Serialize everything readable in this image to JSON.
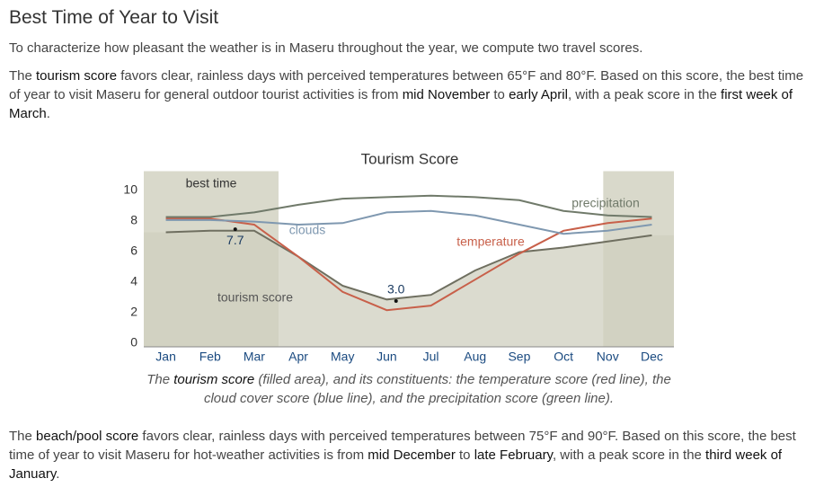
{
  "header": {
    "title": "Best Time of Year to Visit"
  },
  "intro": [
    [
      {
        "text": "To characterize how pleasant the weather is in Maseru throughout the year, we compute two travel scores."
      }
    ],
    [
      {
        "text": "The "
      },
      {
        "text": "tourism score",
        "strong": true
      },
      {
        "text": " favors clear, rainless days with perceived temperatures between 65°F and 80°F. Based on this score, the best time of year to visit Maseru for general outdoor tourist activities is from "
      },
      {
        "text": "mid November",
        "strong": true
      },
      {
        "text": " to "
      },
      {
        "text": "early April",
        "strong": true
      },
      {
        "text": ", with a peak score in the "
      },
      {
        "text": "first week of March",
        "strong": true
      },
      {
        "text": "."
      }
    ]
  ],
  "chart_data": {
    "type": "line",
    "title": "Tourism Score",
    "categories": [
      "Jan",
      "Feb",
      "Mar",
      "Apr",
      "May",
      "Jun",
      "Jul",
      "Aug",
      "Sep",
      "Oct",
      "Nov",
      "Dec"
    ],
    "ylim": [
      0,
      11.5
    ],
    "yticks": [
      0,
      2,
      4,
      6,
      8,
      10
    ],
    "series": [
      {
        "name": "tourism score",
        "color": "#6f6f60",
        "fill": "#cfcfbf",
        "values": [
          7.5,
          7.6,
          7.6,
          5.9,
          4.0,
          3.1,
          3.4,
          5.0,
          6.2,
          6.5,
          6.9,
          7.3
        ]
      },
      {
        "name": "temperature",
        "color": "#c8604a",
        "values": [
          8.4,
          8.4,
          8.0,
          5.9,
          3.6,
          2.4,
          2.7,
          4.4,
          6.1,
          7.6,
          8.1,
          8.4
        ]
      },
      {
        "name": "clouds",
        "color": "#7f98b0",
        "values": [
          8.3,
          8.3,
          8.2,
          8.0,
          8.1,
          8.8,
          8.9,
          8.6,
          8.0,
          7.4,
          7.6,
          8.0
        ]
      },
      {
        "name": "precipitation",
        "color": "#707a6a",
        "values": [
          8.5,
          8.5,
          8.8,
          9.3,
          9.7,
          9.8,
          9.9,
          9.8,
          9.6,
          8.9,
          8.6,
          8.5
        ]
      }
    ],
    "best_time": {
      "label": "best time",
      "color": "#d9d9cb",
      "ranges": [
        [
          0,
          3.05
        ],
        [
          10.4,
          12
        ]
      ]
    },
    "annotations": [
      {
        "x": 1.57,
        "value": 7.7,
        "label": "7.7"
      },
      {
        "x": 5.21,
        "value": 3.0,
        "label": "3.0"
      }
    ],
    "caption": [
      [
        {
          "text": "The "
        },
        {
          "text": "tourism score",
          "strong": true
        },
        {
          "text": " (filled area), and its constituents: the temperature score (red line), the"
        }
      ],
      [
        {
          "text": "cloud cover score (blue line), and the precipitation score (green line)."
        }
      ]
    ]
  },
  "outro": [
    [
      {
        "text": "The "
      },
      {
        "text": "beach/pool score",
        "strong": true
      },
      {
        "text": " favors clear, rainless days with perceived temperatures between 75°F and 90°F. Based on this score, the best time of year to visit Maseru for hot-weather activities is from "
      },
      {
        "text": "mid December",
        "strong": true
      },
      {
        "text": " to "
      },
      {
        "text": "late February",
        "strong": true
      },
      {
        "text": ", with a peak score in the "
      },
      {
        "text": "third week of January",
        "strong": true
      },
      {
        "text": "."
      }
    ]
  ]
}
